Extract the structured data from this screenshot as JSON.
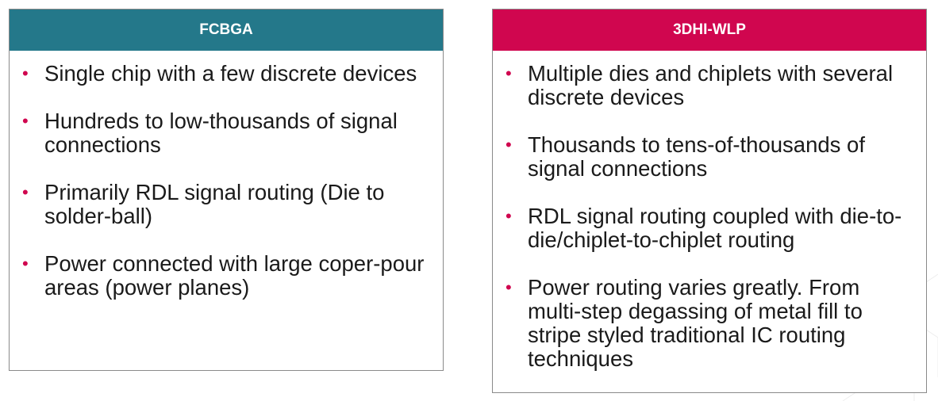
{
  "colors": {
    "fcbga_header": "#24788a",
    "wlp_header": "#d0064f",
    "bullet": "#d0064f"
  },
  "fcbga": {
    "title": "FCBGA",
    "items": [
      "Single chip with a few discrete devices",
      "Hundreds to low-thousands of signal connections",
      "Primarily RDL signal routing (Die to solder-ball)",
      "Power connected with large coper-pour areas (power planes)"
    ]
  },
  "wlp": {
    "title": "3DHI-WLP",
    "items": [
      "Multiple dies and chiplets with several discrete devices",
      "Thousands to tens-of-thousands of signal connections",
      "RDL signal routing coupled with die-to-die/chiplet-to-chiplet routing",
      "Power routing varies greatly. From multi-step degassing of metal fill to stripe styled traditional IC routing techniques"
    ]
  }
}
